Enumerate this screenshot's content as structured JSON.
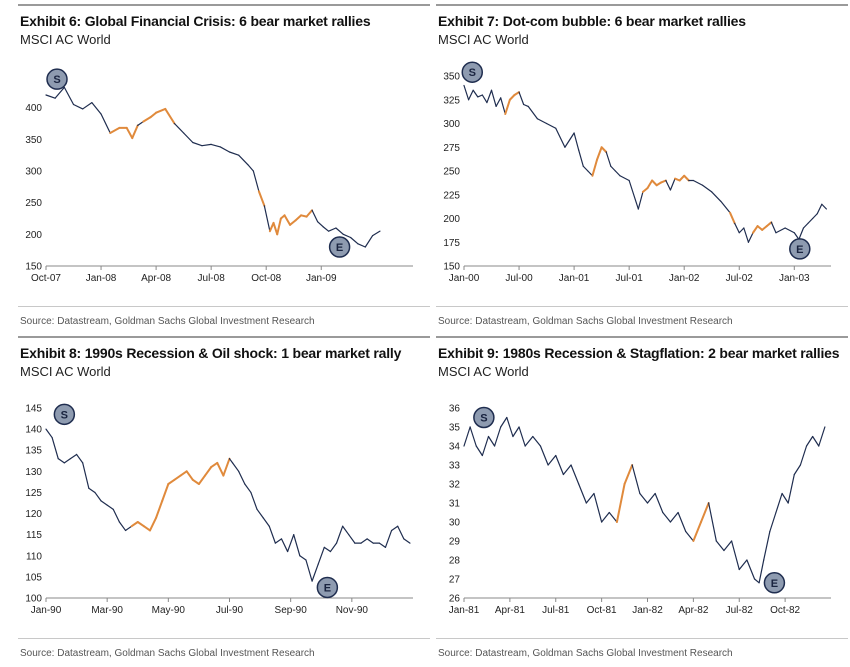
{
  "colors": {
    "normal": "#1f2d4f",
    "rally": "#e08a3c",
    "marker_fill": "#8e9bb0",
    "marker_stroke": "#1f2d4f"
  },
  "source_note": "Source: Datastream, Goldman Sachs Global Investment Research",
  "chart_data": [
    {
      "type": "line",
      "title": "Exhibit 6: Global Financial Crisis: 6 bear market rallies",
      "subtitle": "MSCI AC World",
      "ylim": [
        150,
        450
      ],
      "yticks": [
        150,
        200,
        250,
        300,
        350,
        400
      ],
      "xlim": [
        0,
        20
      ],
      "xticks": [
        {
          "x": 0,
          "label": "Oct-07"
        },
        {
          "x": 3,
          "label": "Jan-08"
        },
        {
          "x": 6,
          "label": "Apr-08"
        },
        {
          "x": 9,
          "label": "Jul-08"
        },
        {
          "x": 12,
          "label": "Oct-08"
        },
        {
          "x": 15,
          "label": "Jan-09"
        }
      ],
      "series": [
        {
          "x": [
            0,
            0.5,
            1,
            1.5,
            2,
            2.5,
            3,
            3.5,
            4,
            4.4,
            4.7,
            5,
            5.3,
            5.7,
            6,
            6.5,
            7,
            7.5,
            8,
            8.5,
            9,
            9.5,
            10,
            10.5,
            11,
            11.3,
            11.6,
            11.9,
            12.2,
            12.4,
            12.6,
            12.8,
            13,
            13.3,
            13.6,
            13.9,
            14.2,
            14.5,
            14.8,
            15.1,
            15.4,
            15.8,
            16.2,
            16.6,
            17,
            17.4,
            17.8,
            18.2
          ],
          "values": [
            420,
            415,
            432,
            405,
            398,
            408,
            390,
            360,
            368,
            368,
            352,
            372,
            378,
            385,
            392,
            398,
            375,
            360,
            345,
            340,
            342,
            338,
            330,
            325,
            310,
            300,
            268,
            245,
            205,
            218,
            200,
            225,
            230,
            215,
            222,
            230,
            228,
            238,
            220,
            212,
            205,
            210,
            200,
            195,
            185,
            180,
            198,
            205
          ]
        }
      ],
      "rallies": [
        [
          3.7,
          5.0
        ],
        [
          5.3,
          6.8
        ],
        [
          11.5,
          11.9
        ],
        [
          12.15,
          12.5
        ],
        [
          12.6,
          13.2
        ],
        [
          13.3,
          14.6
        ]
      ],
      "markers": [
        {
          "label": "S",
          "x": 0.6,
          "y": 445
        },
        {
          "label": "E",
          "x": 16.0,
          "y": 180
        }
      ]
    },
    {
      "type": "line",
      "title": "Exhibit 7: Dot-com bubble: 6 bear market rallies",
      "subtitle": "MSCI AC World",
      "ylim": [
        150,
        350
      ],
      "yticks": [
        150,
        175,
        200,
        225,
        250,
        275,
        300,
        325,
        350
      ],
      "xlim": [
        0,
        40
      ],
      "xticks": [
        {
          "x": 0,
          "label": "Jan-00"
        },
        {
          "x": 6,
          "label": "Jul-00"
        },
        {
          "x": 12,
          "label": "Jan-01"
        },
        {
          "x": 18,
          "label": "Jul-01"
        },
        {
          "x": 24,
          "label": "Jan-02"
        },
        {
          "x": 30,
          "label": "Jul-02"
        },
        {
          "x": 36,
          "label": "Jan-03"
        }
      ],
      "series": [
        {
          "x": [
            0,
            0.5,
            1,
            1.5,
            2,
            2.5,
            3,
            3.5,
            4,
            4.5,
            5,
            5.5,
            6,
            6.5,
            7,
            8,
            9,
            10,
            11,
            12,
            12.5,
            13,
            13.5,
            14,
            14.5,
            15,
            15.5,
            16,
            16.5,
            17,
            18,
            19,
            19.5,
            20,
            20.5,
            21,
            21.5,
            22,
            22.5,
            23,
            23.5,
            24,
            24.5,
            25,
            26,
            27,
            28,
            29,
            29.5,
            30,
            30.5,
            31,
            31.5,
            32,
            32.5,
            33,
            33.5,
            34,
            35,
            36,
            36.5,
            37,
            37.5,
            38,
            38.5,
            39,
            39.5
          ],
          "values": [
            340,
            325,
            335,
            328,
            330,
            322,
            335,
            318,
            327,
            310,
            325,
            330,
            333,
            320,
            318,
            305,
            300,
            295,
            275,
            290,
            272,
            255,
            250,
            245,
            262,
            275,
            270,
            255,
            250,
            245,
            240,
            210,
            228,
            232,
            240,
            235,
            238,
            240,
            230,
            242,
            240,
            245,
            240,
            240,
            235,
            228,
            218,
            206,
            195,
            185,
            190,
            175,
            185,
            192,
            188,
            192,
            196,
            185,
            190,
            185,
            178,
            190,
            195,
            200,
            205,
            215,
            210
          ]
        }
      ],
      "rallies": [
        [
          4.5,
          6.2
        ],
        [
          13.8,
          15.4
        ],
        [
          19.7,
          22.0
        ],
        [
          23.0,
          24.5
        ],
        [
          28.9,
          29.6
        ],
        [
          31.6,
          33.3
        ]
      ],
      "markers": [
        {
          "label": "S",
          "x": 0.9,
          "y": 354
        },
        {
          "label": "E",
          "x": 36.6,
          "y": 168
        }
      ]
    },
    {
      "type": "line",
      "title": "Exhibit 8: 1990s Recession & Oil shock: 1 bear market rally",
      "subtitle": "MSCI AC World",
      "ylim": [
        100,
        145
      ],
      "yticks": [
        100,
        105,
        110,
        115,
        120,
        125,
        130,
        135,
        140,
        145
      ],
      "xlim": [
        0,
        12
      ],
      "xticks": [
        {
          "x": 0,
          "label": "Jan-90"
        },
        {
          "x": 2,
          "label": "Mar-90"
        },
        {
          "x": 4,
          "label": "May-90"
        },
        {
          "x": 6,
          "label": "Jul-90"
        },
        {
          "x": 8,
          "label": "Sep-90"
        },
        {
          "x": 10,
          "label": "Nov-90"
        }
      ],
      "series": [
        {
          "x": [
            0,
            0.2,
            0.4,
            0.6,
            0.8,
            1.0,
            1.2,
            1.4,
            1.6,
            1.8,
            2.0,
            2.2,
            2.4,
            2.6,
            2.8,
            3.0,
            3.2,
            3.4,
            3.6,
            3.8,
            4.0,
            4.2,
            4.4,
            4.6,
            4.8,
            5.0,
            5.2,
            5.4,
            5.6,
            5.8,
            6.0,
            6.1,
            6.3,
            6.5,
            6.7,
            6.9,
            7.1,
            7.3,
            7.5,
            7.7,
            7.9,
            8.1,
            8.3,
            8.5,
            8.7,
            8.9,
            9.1,
            9.3,
            9.5,
            9.7,
            9.9,
            10.1,
            10.3,
            10.5,
            10.7,
            10.9,
            11.1,
            11.3,
            11.5,
            11.7,
            11.9
          ],
          "values": [
            140,
            138,
            133,
            132,
            133,
            134,
            132,
            126,
            125,
            123,
            122,
            121,
            118,
            116,
            117,
            118,
            117,
            116,
            119,
            123,
            127,
            128,
            129,
            130,
            128,
            127,
            129,
            131,
            132,
            129,
            133,
            132,
            130,
            127,
            125,
            121,
            119,
            117,
            113,
            114,
            111,
            115,
            110,
            109,
            104,
            108,
            112,
            111,
            113,
            117,
            115,
            113,
            113,
            114,
            113,
            113,
            112,
            116,
            117,
            114,
            113
          ]
        }
      ],
      "rallies": [
        [
          2.8,
          6.0
        ]
      ],
      "markers": [
        {
          "label": "S",
          "x": 0.6,
          "y": 143.5
        },
        {
          "label": "E",
          "x": 9.2,
          "y": 102.5
        }
      ]
    },
    {
      "type": "line",
      "title": "Exhibit 9: 1980s Recession & Stagflation: 2 bear market rallies",
      "subtitle": "MSCI AC World",
      "ylim": [
        26,
        36
      ],
      "yticks": [
        26,
        27,
        28,
        29,
        30,
        31,
        32,
        33,
        34,
        35,
        36
      ],
      "xlim": [
        0,
        24
      ],
      "xticks": [
        {
          "x": 0,
          "label": "Jan-81"
        },
        {
          "x": 3,
          "label": "Apr-81"
        },
        {
          "x": 6,
          "label": "Jul-81"
        },
        {
          "x": 9,
          "label": "Oct-81"
        },
        {
          "x": 12,
          "label": "Jan-82"
        },
        {
          "x": 15,
          "label": "Apr-82"
        },
        {
          "x": 18,
          "label": "Jul-82"
        },
        {
          "x": 21,
          "label": "Oct-82"
        }
      ],
      "series": [
        {
          "x": [
            0,
            0.4,
            0.8,
            1.2,
            1.6,
            2.0,
            2.4,
            2.8,
            3.2,
            3.6,
            4.0,
            4.5,
            5.0,
            5.5,
            6.0,
            6.5,
            7.0,
            7.5,
            8.0,
            8.5,
            9.0,
            9.5,
            10.0,
            10.5,
            11.0,
            11.5,
            12.0,
            12.5,
            13.0,
            13.5,
            14.0,
            14.5,
            15.0,
            15.5,
            16.0,
            16.5,
            17.0,
            17.5,
            18.0,
            18.5,
            19.0,
            19.3,
            19.6,
            20.0,
            20.4,
            20.8,
            21.2,
            21.6,
            22.0,
            22.4,
            22.8,
            23.2,
            23.6
          ],
          "values": [
            34,
            35,
            34,
            33.5,
            34.5,
            34,
            35,
            35.5,
            34.5,
            35,
            34,
            34.5,
            34,
            33,
            33.5,
            32.5,
            33,
            32,
            31,
            31.5,
            30,
            30.5,
            30,
            32,
            33,
            31.5,
            31,
            31.5,
            30.5,
            30,
            30.5,
            29.5,
            29,
            30,
            31,
            29,
            28.5,
            29,
            27.5,
            28,
            27,
            26.8,
            28,
            29.5,
            30.5,
            31.5,
            31,
            32.5,
            33,
            34,
            34.5,
            34,
            35
          ]
        }
      ],
      "rallies": [
        [
          10.0,
          11.0
        ],
        [
          15.0,
          16.0
        ]
      ],
      "markers": [
        {
          "label": "S",
          "x": 1.3,
          "y": 35.5
        },
        {
          "label": "E",
          "x": 20.3,
          "y": 26.8
        }
      ]
    }
  ]
}
